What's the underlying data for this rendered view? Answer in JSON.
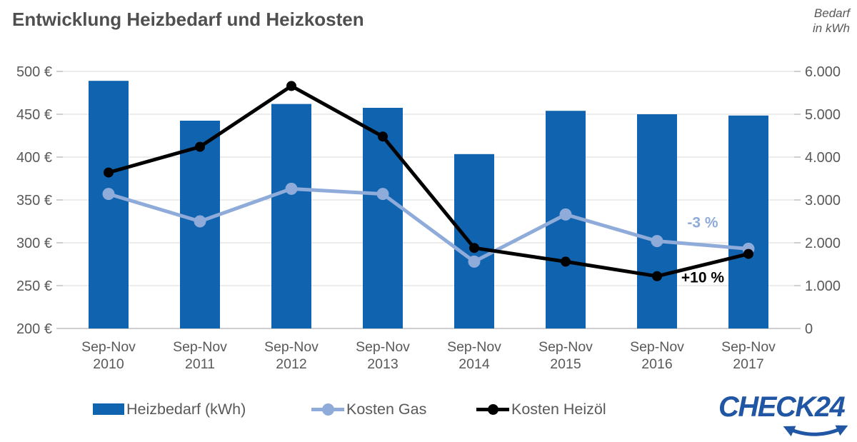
{
  "title": "Entwicklung Heizbedarf und Heizkosten",
  "right_axis_note": {
    "line1": "Bedarf",
    "line2": "in kWh"
  },
  "logo_text": "CHECK24",
  "colors": {
    "bar": "#1063AE",
    "gas": "#8EABD9",
    "oil": "#000000",
    "grid": "#D9D9D9",
    "baseline": "#BFBFBF",
    "tick": "#BFBFBF",
    "text": "#595959",
    "logo": "#2156A5"
  },
  "legend": {
    "items": [
      {
        "label": "Heizbedarf (kWh)",
        "marker": "bar"
      },
      {
        "label": "Kosten Gas",
        "marker": "line-gas"
      },
      {
        "label": "Kosten Heizöl",
        "marker": "line-oil"
      }
    ]
  },
  "chart_data": {
    "type": "combo-bar-line",
    "title": "Entwicklung Heizbedarf und Heizkosten",
    "categories": [
      {
        "period": "Sep-Nov",
        "year": "2010"
      },
      {
        "period": "Sep-Nov",
        "year": "2011"
      },
      {
        "period": "Sep-Nov",
        "year": "2012"
      },
      {
        "period": "Sep-Nov",
        "year": "2013"
      },
      {
        "period": "Sep-Nov",
        "year": "2014"
      },
      {
        "period": "Sep-Nov",
        "year": "2015"
      },
      {
        "period": "Sep-Nov",
        "year": "2016"
      },
      {
        "period": "Sep-Nov",
        "year": "2017"
      }
    ],
    "series": [
      {
        "name": "Heizbedarf (kWh)",
        "type": "bar",
        "axis": "right",
        "color_key": "bar",
        "values": [
          5780,
          4850,
          5240,
          5150,
          4070,
          5080,
          5000,
          4970
        ]
      },
      {
        "name": "Kosten Gas",
        "type": "line",
        "axis": "left",
        "color_key": "gas",
        "values": [
          357,
          325,
          363,
          357,
          278,
          333,
          302,
          293
        ]
      },
      {
        "name": "Kosten Heizöl",
        "type": "line",
        "axis": "left",
        "color_key": "oil",
        "values": [
          382,
          412,
          483,
          424,
          294,
          278,
          261,
          287
        ]
      }
    ],
    "left_axis": {
      "min": 200,
      "max": 500,
      "step": 50,
      "tick_labels": [
        "500 €",
        "450 €",
        "400 €",
        "350 €",
        "300 €",
        "250 €",
        "200 €"
      ]
    },
    "right_axis": {
      "min": 0,
      "max": 6000,
      "step": 1000,
      "tick_labels": [
        "6.000",
        "5.000",
        "4.000",
        "3.000",
        "2.000",
        "1.000",
        "0"
      ]
    },
    "annotations": [
      {
        "text": "-3 %",
        "color_key": "gas",
        "series_name": "Kosten Gas",
        "between_indices": [
          6,
          7
        ],
        "dy": -31
      },
      {
        "text": "+10 %",
        "color_key": "oil",
        "series_name": "Kosten Heizöl",
        "between_indices": [
          6,
          7
        ],
        "dy": 18
      }
    ],
    "grid": true,
    "legend_position": "bottom"
  }
}
